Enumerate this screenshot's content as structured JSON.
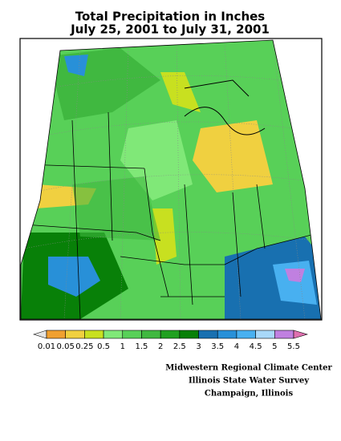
{
  "title": [
    "Total Precipitation in Inches",
    "July 25, 2001 to July 31, 2001"
  ],
  "legend": {
    "labels": [
      0.01,
      0.05,
      0.25,
      0.5,
      1,
      1.5,
      2,
      2.5,
      3,
      3.5,
      4,
      4.5,
      5,
      5.5
    ],
    "colors": [
      "#e4e4e4",
      "#f0a030",
      "#f0d040",
      "#c8e020",
      "#80e878",
      "#58d058",
      "#40b840",
      "#20a020",
      "#088008",
      "#1870b0",
      "#2890d8",
      "#48b0f0",
      "#a8d8f8",
      "#c080e0",
      "#e070b0"
    ]
  },
  "credits": [
    "Midwestern Regional Climate Center",
    "Illinois State Water Survey",
    "Champaign, Illinois"
  ]
}
